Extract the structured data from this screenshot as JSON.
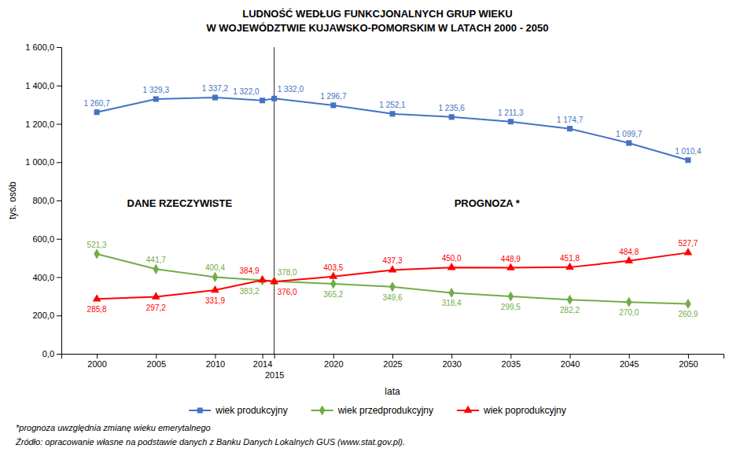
{
  "chart_data": {
    "type": "line",
    "title": "LUDNOŚĆ WEDŁUG FUNKCJONALNYCH GRUP WIEKU",
    "subtitle": "W WOJEWÓDZTWIE KUJAWSKO-POMORSKIM W LATACH 2000 - 2050",
    "x_label": "lata",
    "y_label": "tys. osób",
    "x": [
      2000,
      2005,
      2010,
      2014,
      2015,
      2020,
      2025,
      2030,
      2035,
      2040,
      2045,
      2050
    ],
    "xlim": [
      1997,
      2053
    ],
    "xticks": [
      2000,
      2005,
      2010,
      2014,
      2015,
      2020,
      2025,
      2030,
      2035,
      2040,
      2045,
      2050
    ],
    "ylim": [
      0,
      1600
    ],
    "yticks": [
      {
        "value": 0,
        "label": "0,0"
      },
      {
        "value": 200,
        "label": "200,0"
      },
      {
        "value": 400,
        "label": "400,0"
      },
      {
        "value": 600,
        "label": "600,0"
      },
      {
        "value": 800,
        "label": "800,0"
      },
      {
        "value": 1000,
        "label": "1 000,0"
      },
      {
        "value": 1200,
        "label": "1 200,0"
      },
      {
        "value": 1400,
        "label": "1 400,0"
      },
      {
        "value": 1600,
        "label": "1 600,0"
      }
    ],
    "grid": false,
    "legend": "bottom",
    "data_labels": true,
    "series": [
      {
        "name": "wiek produkcyjny",
        "color": "#4472C4",
        "marker": "square",
        "values": [
          1260.7,
          1329.3,
          1337.2,
          1322.0,
          1332.0,
          1296.7,
          1252.1,
          1235.6,
          1211.3,
          1174.7,
          1099.7,
          1010.4
        ],
        "value_labels": [
          "1 260,7",
          "1 329,3",
          "1 337,2",
          "1 322,0",
          "1 332,0",
          "1 296,7",
          "1 252,1",
          "1 235,6",
          "1 211,3",
          "1 174,7",
          "1 099,7",
          "1 010,4"
        ]
      },
      {
        "name": "wiek przedprodukcyjny",
        "color": "#70AD47",
        "marker": "diamond",
        "values": [
          521.3,
          441.7,
          400.4,
          383.2,
          378.0,
          365.2,
          349.6,
          318.4,
          299.5,
          282.2,
          270.0,
          260.9
        ],
        "value_labels": [
          "521,3",
          "441,7",
          "400,4",
          "383,2",
          "378,0",
          "365,2",
          "349,6",
          "318,4",
          "299,5",
          "282,2",
          "270,0",
          "260,9"
        ]
      },
      {
        "name": "wiek poprodukcyjny",
        "color": "#FF0000",
        "marker": "triangle",
        "values": [
          285.8,
          297.2,
          331.9,
          384.9,
          376.0,
          403.5,
          437.3,
          450.0,
          448.9,
          451.8,
          484.8,
          527.7
        ],
        "value_labels": [
          "285,8",
          "297,2",
          "331,9",
          "384,9",
          "376,0",
          "403,5",
          "437,3",
          "450,0",
          "448,9",
          "451,8",
          "484,8",
          "527,7"
        ]
      }
    ],
    "vertical_lines": [
      2015
    ],
    "annotations": [
      {
        "text": "DANE RZECZYWISTE",
        "x": 2007,
        "y": 780
      },
      {
        "text": "PROGNOZA *",
        "x": 2033,
        "y": 780
      }
    ],
    "footnotes": [
      "*prognoza uwzględnia zmianę wieku emerytalnego",
      "Źródło: opracowanie własne na podstawie danych z Banku Danych Lokalnych GUS (www.stat.gov.pl)."
    ]
  }
}
